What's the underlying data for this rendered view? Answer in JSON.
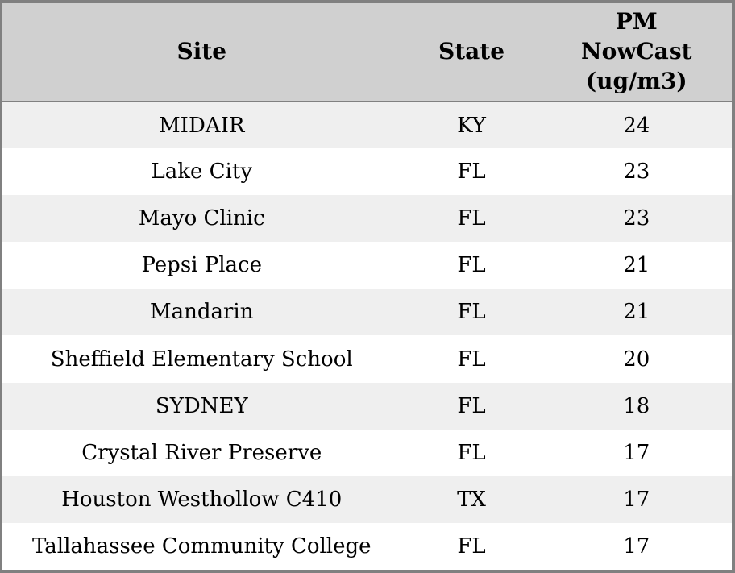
{
  "colors": {
    "header_bg": "#d0d0d0",
    "row_alt_bg": "#efefef",
    "row_bg": "#ffffff",
    "frame_border": "#808080",
    "text": "#000000"
  },
  "chart_data": {
    "type": "table",
    "columns": [
      "Site",
      "State",
      "PM NowCast (ug/m3)"
    ],
    "rows": [
      [
        "MIDAIR",
        "KY",
        24
      ],
      [
        "Lake City",
        "FL",
        23
      ],
      [
        "Mayo Clinic",
        "FL",
        23
      ],
      [
        "Pepsi Place",
        "FL",
        21
      ],
      [
        "Mandarin",
        "FL",
        21
      ],
      [
        "Sheffield Elementary School",
        "FL",
        20
      ],
      [
        "SYDNEY",
        "FL",
        18
      ],
      [
        "Crystal River Preserve",
        "FL",
        17
      ],
      [
        "Houston Westhollow C410",
        "TX",
        17
      ],
      [
        "Tallahassee Community College",
        "FL",
        17
      ]
    ]
  }
}
